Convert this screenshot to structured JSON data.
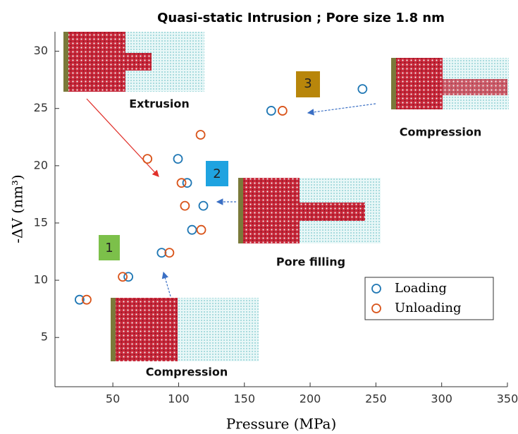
{
  "chart_data": {
    "type": "scatter",
    "title": "Quasi-static Intrusion ; Pore size 1.8 nm",
    "x_label": "Pressure (MPa)",
    "y_label": "-ΔV (nm³)",
    "xlim": [
      6,
      350
    ],
    "xticks": [
      50,
      100,
      150,
      200,
      250,
      300,
      350
    ],
    "ylim": [
      0.7,
      31.7
    ],
    "yticks": [
      5,
      10,
      15,
      20,
      25,
      30
    ],
    "grid": false,
    "legend": "lower right",
    "series": [
      {
        "name": "Loading",
        "color": "#1f77b4",
        "x": [
          24.7,
          61.8,
          87.1,
          110.2,
          118.8,
          106.5,
          99.5,
          170.4,
          239.8
        ],
        "values": [
          8.3,
          10.3,
          12.4,
          14.4,
          16.5,
          18.5,
          20.6,
          24.8,
          26.7
        ]
      },
      {
        "name": "Unloading",
        "color": "#d9541a",
        "x": [
          30.1,
          57.5,
          93,
          117.2,
          104.8,
          102.2,
          76.3,
          116.7,
          179
        ],
        "values": [
          8.3,
          10.3,
          12.4,
          14.4,
          16.5,
          18.5,
          20.6,
          22.7,
          24.8
        ]
      }
    ],
    "annotations": {
      "extrusion": "Extrusion",
      "compression_top": "Compression",
      "pore_filling": "Pore filling",
      "compression_bottom": "Compression",
      "step1": "1",
      "step2": "2",
      "step3": "3"
    }
  }
}
